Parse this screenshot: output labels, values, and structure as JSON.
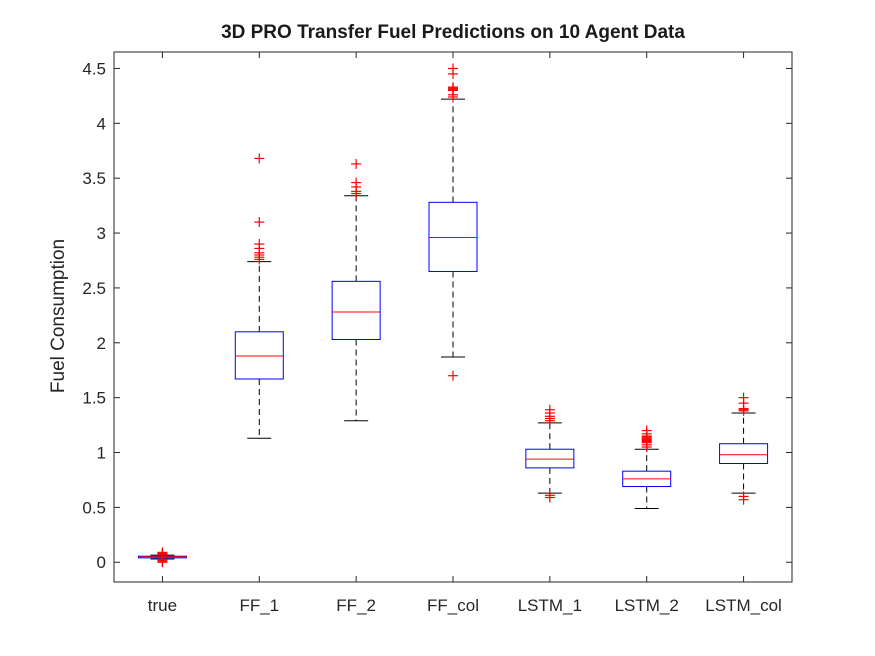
{
  "chart_data": {
    "type": "box",
    "title": "3D PRO Transfer Fuel Predictions on 10 Agent Data",
    "xlabel": "",
    "ylabel": "Fuel Consumption",
    "ylim": [
      -0.18,
      4.65
    ],
    "yticks": [
      0,
      0.5,
      1,
      1.5,
      2,
      2.5,
      3,
      3.5,
      4,
      4.5
    ],
    "ytick_labels": [
      "0",
      "0.5",
      "1",
      "1.5",
      "2",
      "2.5",
      "3",
      "3.5",
      "4",
      "4.5"
    ],
    "categories": [
      "true",
      "FF_1",
      "FF_2",
      "FF_col",
      "LSTM_1",
      "LSTM_2",
      "LSTM_col"
    ],
    "grid": false,
    "colors": {
      "box": "#0000ff",
      "median": "#ff0000",
      "whisker": "#000000",
      "outlier": "#ff0000",
      "axis": "#262626"
    },
    "series": [
      {
        "category": "true",
        "lower_whisker": 0.03,
        "q1": 0.04,
        "median": 0.05,
        "q3": 0.055,
        "upper_whisker": 0.065,
        "outliers": [
          0.0,
          0.01,
          0.02,
          0.025,
          0.07,
          0.075,
          0.08,
          0.09
        ]
      },
      {
        "category": "FF_1",
        "lower_whisker": 1.13,
        "q1": 1.67,
        "median": 1.88,
        "q3": 2.1,
        "upper_whisker": 2.74,
        "outliers": [
          2.76,
          2.78,
          2.8,
          2.82,
          2.86,
          2.9,
          3.1,
          3.68
        ]
      },
      {
        "category": "FF_2",
        "lower_whisker": 1.29,
        "q1": 2.03,
        "median": 2.28,
        "q3": 2.56,
        "upper_whisker": 3.34,
        "outliers": [
          3.36,
          3.38,
          3.42,
          3.46,
          3.63
        ]
      },
      {
        "category": "FF_col",
        "lower_whisker": 1.87,
        "q1": 2.65,
        "median": 2.96,
        "q3": 3.28,
        "upper_whisker": 4.22,
        "outliers": [
          1.7,
          4.24,
          4.26,
          4.3,
          4.31,
          4.32,
          4.33,
          4.45,
          4.5
        ]
      },
      {
        "category": "LSTM_1",
        "lower_whisker": 0.63,
        "q1": 0.86,
        "median": 0.94,
        "q3": 1.03,
        "upper_whisker": 1.27,
        "outliers": [
          0.59,
          0.61,
          1.29,
          1.31,
          1.33,
          1.36,
          1.39
        ]
      },
      {
        "category": "LSTM_2",
        "lower_whisker": 0.49,
        "q1": 0.69,
        "median": 0.76,
        "q3": 0.83,
        "upper_whisker": 1.03,
        "outliers": [
          1.05,
          1.07,
          1.09,
          1.1,
          1.11,
          1.12,
          1.13,
          1.14,
          1.15,
          1.17,
          1.2
        ]
      },
      {
        "category": "LSTM_col",
        "lower_whisker": 0.63,
        "q1": 0.9,
        "median": 0.98,
        "q3": 1.08,
        "upper_whisker": 1.36,
        "outliers": [
          0.57,
          0.6,
          1.38,
          1.39,
          1.4,
          1.45,
          1.5
        ]
      }
    ]
  }
}
